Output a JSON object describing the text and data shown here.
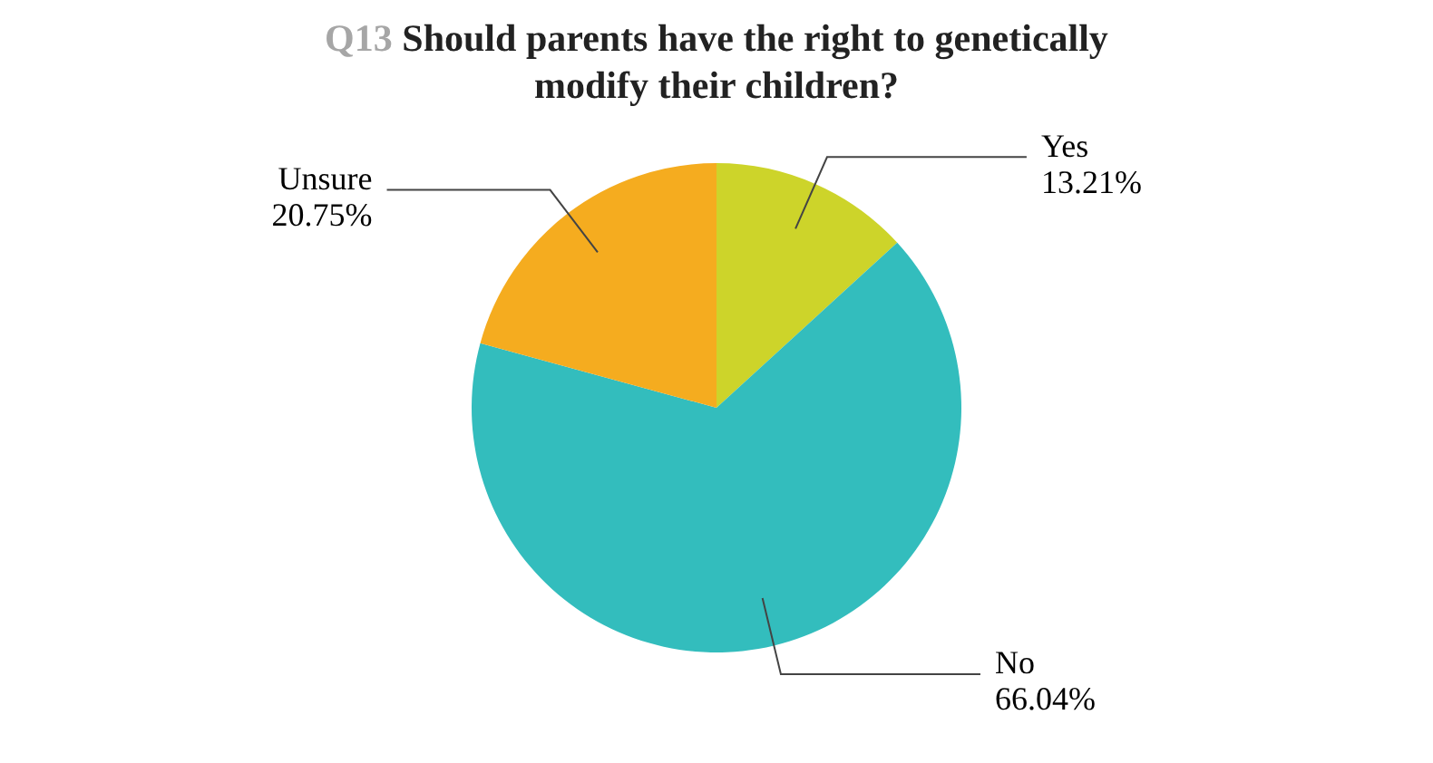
{
  "chart_data": {
    "type": "pie",
    "title": "Q13 Should parents have the right to genetically modify their children?",
    "categories": [
      "Yes",
      "No",
      "Unsure"
    ],
    "values": [
      13.21,
      66.04,
      20.75
    ],
    "value_labels": [
      "13.21%",
      "66.04%",
      "20.75%"
    ],
    "colors": [
      "#cdd42a",
      "#33bdbd",
      "#f5ac1f"
    ],
    "legend": false
  }
}
